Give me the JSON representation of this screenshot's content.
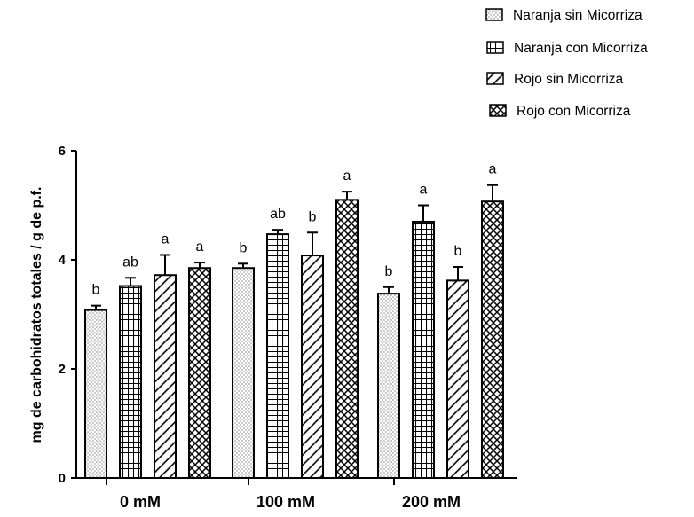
{
  "chart_data": {
    "type": "bar",
    "title": "",
    "xlabel": "",
    "ylabel": "mg de carbohidratos totales / g de p.f.",
    "ylim": [
      0,
      6
    ],
    "yticks": [
      "0",
      "2",
      "4",
      "6"
    ],
    "categories": [
      "0 mM",
      "100 mM",
      "200 mM"
    ],
    "grid": false,
    "legend_position": "top-right",
    "series": [
      {
        "name": "Naranja sin Micorriza",
        "pattern": "dots",
        "values": [
          3.08,
          3.85,
          3.38
        ],
        "errors": [
          0.08,
          0.08,
          0.12
        ],
        "labels": [
          "b",
          "b",
          "b"
        ]
      },
      {
        "name": "Naranja con Micorriza",
        "pattern": "grid",
        "values": [
          3.52,
          4.47,
          4.7
        ],
        "errors": [
          0.15,
          0.08,
          0.3
        ],
        "labels": [
          "ab",
          "ab",
          "a"
        ]
      },
      {
        "name": "Rojo sin Micorriza",
        "pattern": "diagonal",
        "values": [
          3.72,
          4.08,
          3.62
        ],
        "errors": [
          0.37,
          0.42,
          0.25
        ],
        "labels": [
          "a",
          "b",
          "b"
        ]
      },
      {
        "name": "Rojo con Micorriza",
        "pattern": "crosshatch",
        "values": [
          3.85,
          5.1,
          5.07
        ],
        "errors": [
          0.1,
          0.15,
          0.3
        ],
        "labels": [
          "a",
          "a",
          "a"
        ]
      }
    ]
  }
}
